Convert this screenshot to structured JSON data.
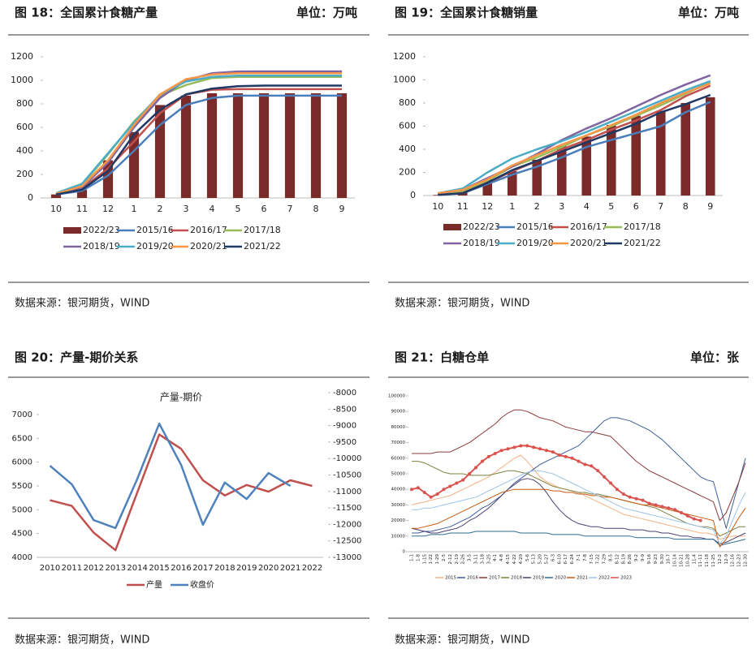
{
  "panels": [
    {
      "title": "图 18：全国累计食糖产量",
      "unit": "单位：万吨",
      "source": "数据来源：银河期货，WIND"
    },
    {
      "title": "图 19：全国累计食糖销量",
      "unit": "单位：万吨",
      "source": "数据来源：银河期货，WIND"
    },
    {
      "title": "图 20：产量-期价关系",
      "source": "数据来源：银河期货，WIND"
    },
    {
      "title": "图 21：白糖仓单",
      "unit": "单位：张",
      "source": "数据来源：银河期货，WIND"
    }
  ],
  "chart_data": [
    {
      "type": "bar_line",
      "categories": [
        "10",
        "11",
        "12",
        "1",
        "2",
        "3",
        "4",
        "5",
        "6",
        "7",
        "8",
        "9"
      ],
      "ylim": [
        0,
        1200
      ],
      "yticks": [
        0,
        200,
        400,
        600,
        800,
        1000,
        1200
      ],
      "series": [
        {
          "name": "2022/23",
          "type": "bar",
          "color": "#7b2a2a",
          "values": [
            30,
            70,
            320,
            560,
            790,
            870,
            890,
            890,
            890,
            890,
            890,
            890
          ]
        },
        {
          "name": "2015/16",
          "type": "line",
          "color": "#4a7ebb",
          "values": [
            30,
            60,
            190,
            400,
            620,
            790,
            850,
            870,
            870,
            870,
            870,
            870
          ]
        },
        {
          "name": "2016/17",
          "type": "line",
          "color": "#c0504d",
          "values": [
            30,
            80,
            250,
            480,
            720,
            880,
            920,
            925,
            925,
            925,
            925,
            925
          ]
        },
        {
          "name": "2017/18",
          "type": "line",
          "color": "#9bbb59",
          "values": [
            35,
            110,
            370,
            650,
            870,
            960,
            1020,
            1030,
            1030,
            1030,
            1030,
            1030
          ]
        },
        {
          "name": "2018/19",
          "type": "line",
          "color": "#8064a2",
          "values": [
            30,
            90,
            300,
            600,
            850,
            1000,
            1060,
            1075,
            1076,
            1076,
            1076,
            1076
          ]
        },
        {
          "name": "2019/20",
          "type": "line",
          "color": "#4bacc6",
          "values": [
            40,
            120,
            380,
            640,
            880,
            990,
            1030,
            1040,
            1040,
            1040,
            1040,
            1040
          ]
        },
        {
          "name": "2020/21",
          "type": "line",
          "color": "#f79646",
          "values": [
            35,
            100,
            320,
            620,
            880,
            1010,
            1050,
            1060,
            1060,
            1060,
            1060,
            1060
          ]
        },
        {
          "name": "2021/22",
          "type": "line",
          "color": "#1f3864",
          "values": [
            30,
            70,
            230,
            540,
            750,
            880,
            930,
            950,
            955,
            955,
            955,
            955
          ]
        }
      ]
    },
    {
      "type": "bar_line",
      "categories": [
        "10",
        "11",
        "12",
        "1",
        "2",
        "3",
        "4",
        "5",
        "6",
        "7",
        "8",
        "9"
      ],
      "ylim": [
        0,
        1200
      ],
      "yticks": [
        0,
        200,
        400,
        600,
        800,
        1000,
        1200
      ],
      "series": [
        {
          "name": "2022/23",
          "type": "bar",
          "color": "#7b2a2a",
          "values": [
            5,
            25,
            140,
            210,
            310,
            430,
            510,
            610,
            690,
            730,
            800,
            850
          ]
        },
        {
          "name": "2015/16",
          "type": "line",
          "color": "#4a7ebb",
          "values": [
            10,
            20,
            100,
            180,
            250,
            330,
            420,
            480,
            540,
            600,
            720,
            810
          ]
        },
        {
          "name": "2016/17",
          "type": "line",
          "color": "#c0504d",
          "values": [
            10,
            30,
            110,
            210,
            300,
            400,
            480,
            570,
            650,
            740,
            860,
            950
          ]
        },
        {
          "name": "2017/18",
          "type": "line",
          "color": "#9bbb59",
          "values": [
            15,
            40,
            130,
            250,
            330,
            420,
            520,
            600,
            690,
            780,
            880,
            980
          ]
        },
        {
          "name": "2018/19",
          "type": "line",
          "color": "#8064a2",
          "values": [
            15,
            50,
            150,
            250,
            360,
            480,
            580,
            670,
            770,
            870,
            960,
            1040
          ]
        },
        {
          "name": "2019/20",
          "type": "line",
          "color": "#4bacc6",
          "values": [
            20,
            60,
            200,
            320,
            400,
            470,
            550,
            640,
            730,
            820,
            910,
            990
          ]
        },
        {
          "name": "2020/21",
          "type": "line",
          "color": "#f79646",
          "values": [
            20,
            50,
            140,
            260,
            350,
            440,
            520,
            610,
            700,
            800,
            890,
            970
          ]
        },
        {
          "name": "2021/22",
          "type": "line",
          "color": "#1f3864",
          "values": [
            5,
            20,
            110,
            220,
            300,
            380,
            460,
            540,
            620,
            720,
            790,
            870
          ]
        }
      ]
    },
    {
      "type": "line_dual_axis",
      "title": "产量-期价",
      "categories": [
        "2010",
        "2011",
        "2012",
        "2013",
        "2014",
        "2015",
        "2016",
        "2017",
        "2018",
        "2019",
        "2020",
        "2021",
        "2022"
      ],
      "ylim": [
        4000,
        7000
      ],
      "yticks": [
        4000,
        4500,
        5000,
        5500,
        6000,
        6500,
        7000
      ],
      "y2lim": [
        -13000,
        -8000
      ],
      "y2ticks": [
        -13000,
        -12500,
        -12000,
        -11500,
        -11000,
        -10500,
        -10000,
        -9500,
        -9000,
        -8500,
        -8000
      ],
      "series": [
        {
          "name": "产量",
          "color": "#c0504d",
          "values": [
            5200,
            5080,
            4520,
            4150,
            5370,
            6580,
            6280,
            5620,
            5300,
            5520,
            5380,
            5620,
            5500
          ]
        },
        {
          "name": "收盘价",
          "color": "#4f81bd",
          "axis": "y2",
          "values": [
            -10220,
            -10780,
            -11870,
            -12110,
            -10610,
            -8940,
            -10190,
            -12010,
            -10730,
            -11230,
            -10440,
            -10830,
            null
          ]
        }
      ]
    },
    {
      "type": "line",
      "categories": [
        "1-1",
        "1-8",
        "1-15",
        "1-22",
        "1-29",
        "2-5",
        "2-12",
        "2-19",
        "2-26",
        "3-5",
        "3-11",
        "3-18",
        "3-25",
        "4-1",
        "4-8",
        "4-15",
        "4-22",
        "4-29",
        "5-6",
        "5-13",
        "5-20",
        "5-27",
        "6-3",
        "6-10",
        "6-17",
        "6-24",
        "7-1",
        "7-8",
        "7-15",
        "7-22",
        "7-29",
        "8-5",
        "8-12",
        "8-19",
        "8-26",
        "9-2",
        "9-9",
        "9-16",
        "9-23",
        "9-30",
        "10-7",
        "10-14",
        "10-21",
        "10-28",
        "11-4",
        "11-11",
        "11-18",
        "11-25",
        "12-2",
        "12-9",
        "12-16",
        "12-23",
        "12-30"
      ],
      "ylim": [
        0,
        100000
      ],
      "yticks": [
        0,
        10000,
        20000,
        30000,
        40000,
        50000,
        60000,
        70000,
        80000,
        90000,
        100000
      ],
      "series": [
        {
          "name": "2015",
          "color": "#f4b183",
          "values": [
            30000,
            31000,
            32000,
            33000,
            34000,
            35000,
            36000,
            38000,
            40000,
            42000,
            44000,
            46000,
            48000,
            51000,
            54000,
            57000,
            60000,
            62000,
            58000,
            53000,
            48000,
            45000,
            43000,
            41000,
            40000,
            39000,
            38000,
            36000,
            34000,
            32000,
            30000,
            28000,
            26000,
            24000,
            23000,
            22000,
            21000,
            20000,
            19000,
            18000,
            17000,
            16000,
            15000,
            14000,
            13000,
            12000,
            12000,
            11000,
            8000,
            9000,
            10000,
            10000,
            10000
          ]
        },
        {
          "name": "2016",
          "color": "#3f5d9a",
          "values": [
            12000,
            12000,
            13000,
            13000,
            14000,
            15000,
            16000,
            18000,
            20000,
            22000,
            25000,
            28000,
            30000,
            33000,
            36000,
            40000,
            44000,
            47000,
            50000,
            53000,
            56000,
            58000,
            60000,
            62000,
            64000,
            66000,
            68000,
            72000,
            76000,
            80000,
            84000,
            86000,
            86000,
            85000,
            84000,
            82000,
            80000,
            78000,
            75000,
            72000,
            68000,
            64000,
            60000,
            56000,
            52000,
            48000,
            46000,
            45000,
            30000,
            15000,
            30000,
            45000,
            60000
          ]
        },
        {
          "name": "2017",
          "color": "#8b3a3a",
          "values": [
            63000,
            63000,
            63000,
            63000,
            64000,
            64000,
            64000,
            66000,
            68000,
            70000,
            73000,
            76000,
            79000,
            82000,
            86000,
            89000,
            91000,
            91000,
            90000,
            88000,
            86000,
            85000,
            84000,
            82000,
            80000,
            79000,
            78000,
            77000,
            77000,
            76000,
            75000,
            74000,
            70000,
            66000,
            62000,
            58000,
            55000,
            52000,
            50000,
            48000,
            46000,
            44000,
            42000,
            40000,
            38000,
            36000,
            34000,
            32000,
            20000,
            25000,
            35000,
            45000,
            57000
          ]
        },
        {
          "name": "2018",
          "color": "#7f7f3f",
          "values": [
            58000,
            58000,
            57000,
            55000,
            53000,
            51000,
            50000,
            50000,
            50000,
            49000,
            49000,
            49000,
            49000,
            50000,
            51000,
            52000,
            52000,
            51000,
            50000,
            48000,
            46000,
            44000,
            42000,
            41000,
            40000,
            39000,
            38000,
            38000,
            37000,
            37000,
            36000,
            35000,
            34000,
            33000,
            32000,
            31000,
            30000,
            29000,
            28000,
            26000,
            24000,
            22000,
            20000,
            18000,
            17000,
            16000,
            16000,
            15000,
            10000,
            12000,
            14000,
            16000,
            16000
          ]
        },
        {
          "name": "2019",
          "color": "#4b3f72",
          "values": [
            15000,
            14000,
            13000,
            12000,
            12000,
            13000,
            14000,
            15000,
            17000,
            20000,
            22000,
            25000,
            28000,
            32000,
            36000,
            40000,
            43000,
            46000,
            47000,
            46000,
            43000,
            38000,
            32000,
            27000,
            23000,
            20000,
            18000,
            17000,
            16000,
            16000,
            15000,
            15000,
            15000,
            15000,
            14000,
            14000,
            14000,
            13000,
            13000,
            12000,
            12000,
            11000,
            10000,
            10000,
            9000,
            9000,
            8000,
            8000,
            5000,
            6000,
            8000,
            10000,
            12000
          ]
        },
        {
          "name": "2020",
          "color": "#2e6e8e",
          "values": [
            10000,
            10000,
            10000,
            11000,
            11000,
            11000,
            12000,
            12000,
            12000,
            12000,
            13000,
            13000,
            13000,
            13000,
            13000,
            13000,
            13000,
            12000,
            12000,
            12000,
            12000,
            12000,
            11000,
            11000,
            11000,
            11000,
            11000,
            10000,
            10000,
            10000,
            10000,
            10000,
            10000,
            10000,
            10000,
            9000,
            9000,
            9000,
            9000,
            9000,
            9000,
            8000,
            8000,
            8000,
            8000,
            8000,
            8000,
            8000,
            4000,
            5000,
            6000,
            7000,
            8000
          ]
        },
        {
          "name": "2021",
          "color": "#c55a11",
          "values": [
            15000,
            15000,
            16000,
            17000,
            18000,
            20000,
            22000,
            24000,
            26000,
            28000,
            30000,
            32000,
            34000,
            36000,
            38000,
            39000,
            40000,
            40000,
            40000,
            40000,
            40000,
            40000,
            39000,
            39000,
            38000,
            38000,
            37000,
            37000,
            36000,
            36000,
            35000,
            35000,
            34000,
            33000,
            32000,
            31000,
            30000,
            30000,
            29000,
            28000,
            27000,
            26000,
            25000,
            24000,
            23000,
            22000,
            21000,
            20000,
            3000,
            8000,
            15000,
            22000,
            28000
          ]
        },
        {
          "name": "2022",
          "color": "#9dc3e6",
          "values": [
            27000,
            27000,
            28000,
            28000,
            29000,
            30000,
            31000,
            32000,
            33000,
            34000,
            35000,
            37000,
            39000,
            41000,
            43000,
            45000,
            47000,
            49000,
            51000,
            52000,
            52000,
            51000,
            50000,
            48000,
            46000,
            44000,
            42000,
            40000,
            38000,
            36000,
            34000,
            32000,
            30000,
            28000,
            27000,
            26000,
            25000,
            24000,
            23000,
            22000,
            21000,
            20000,
            19000,
            18000,
            17000,
            16000,
            15000,
            14000,
            5000,
            10000,
            20000,
            30000,
            38000
          ]
        },
        {
          "name": "2023",
          "color": "#d9534f",
          "marker": true,
          "values": [
            40000,
            41000,
            38000,
            35000,
            37000,
            40000,
            42000,
            44000,
            46000,
            50000,
            54000,
            58000,
            61000,
            63000,
            65000,
            66000,
            67000,
            68000,
            68000,
            67000,
            66000,
            65000,
            64000,
            62000,
            61000,
            60000,
            58000,
            56000,
            55000,
            52000,
            48000,
            44000,
            40000,
            37000,
            35000,
            34000,
            33000,
            31000,
            30000,
            29000,
            28000,
            27000,
            25000,
            23000,
            21000,
            20000,
            null,
            null,
            null,
            null,
            null,
            null,
            null
          ]
        }
      ]
    }
  ]
}
